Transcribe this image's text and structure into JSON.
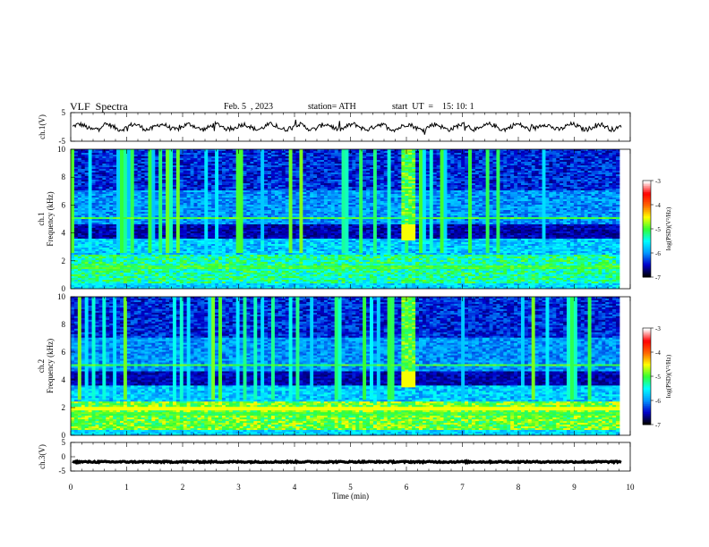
{
  "header": {
    "title": "VLF  Spectra",
    "date": "Feb. 5  , 2023",
    "station": "station= ATH",
    "start": "start  UT  =    15: 10: 1"
  },
  "chart_data": [
    {
      "type": "line",
      "panel": "ch1-waveform",
      "ylabel": "ch.1(V)",
      "ylim": [
        -5,
        5
      ],
      "yticks": [
        "5",
        "-5"
      ],
      "xlim": [
        0,
        10
      ],
      "baseline": 0,
      "color": "#000000"
    },
    {
      "type": "heatmap",
      "panel": "ch1-spectrogram",
      "ylabel": "Frequency  (kHz)",
      "ylabel_ch": "ch.1",
      "ylim": [
        0,
        10
      ],
      "yticks": [
        "0",
        "2",
        "4",
        "6",
        "8",
        "10"
      ],
      "xlim": [
        0,
        10
      ],
      "feature_burst": {
        "x": [
          5.85,
          6.1
        ],
        "freq": [
          3.5,
          10
        ]
      },
      "colorbar": {
        "label": "log(PSD)(V²/Hz)",
        "range": [
          -7,
          -3
        ],
        "ticks": [
          "-3",
          "-4",
          "-5",
          "-6",
          "-7"
        ],
        "colors": [
          "#000000",
          "#0000cc",
          "#0099ff",
          "#00ffff",
          "#33ff33",
          "#ffff00",
          "#ff6600",
          "#ff0000",
          "#ffffff"
        ]
      }
    },
    {
      "type": "heatmap",
      "panel": "ch2-spectrogram",
      "ylabel": "Frequency  (kHz)",
      "ylabel_ch": "ch.2",
      "ylim": [
        0,
        10
      ],
      "yticks": [
        "0",
        "2",
        "4",
        "6",
        "8",
        "10"
      ],
      "xlim": [
        0,
        10
      ],
      "feature_burst": {
        "x": [
          5.85,
          6.1
        ],
        "freq": [
          3.5,
          10
        ]
      },
      "colorbar": {
        "label": "log(PSD)(V²/Hz)",
        "range": [
          -7,
          -3
        ],
        "ticks": [
          "-3",
          "-4",
          "-5",
          "-6",
          "-7"
        ],
        "colors": [
          "#000000",
          "#0000cc",
          "#0099ff",
          "#00ffff",
          "#33ff33",
          "#ffff00",
          "#ff6600",
          "#ff0000",
          "#ffffff"
        ]
      }
    },
    {
      "type": "line",
      "panel": "ch3-waveform",
      "ylabel": "ch.3(V)",
      "ylim": [
        -5,
        5
      ],
      "yticks": [
        "5",
        "0",
        "-5"
      ],
      "xlim": [
        0,
        10
      ],
      "baseline": -1.8,
      "color": "#000000"
    }
  ],
  "xaxis": {
    "label": "Time  (min)",
    "ticks": [
      "0",
      "1",
      "2",
      "3",
      "4",
      "5",
      "6",
      "7",
      "8",
      "9",
      "10"
    ]
  }
}
